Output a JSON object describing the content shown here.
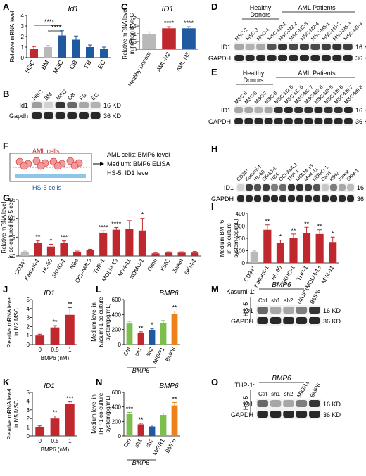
{
  "colors": {
    "red": "#c0282f",
    "blue": "#1f5aa0",
    "gray": "#b9b9b9",
    "green": "#7dbf4e",
    "orange": "#f0801a",
    "pink": "#f2b8b8",
    "cellred": "#f29a9a",
    "cellblue": "#8ec6ea"
  },
  "panels": {
    "A": {
      "letter": "A",
      "gene": "Id1",
      "ylabel": "Relative mRNA level",
      "sig": [
        "****",
        "****"
      ]
    },
    "B": {
      "letter": "B",
      "cols": [
        "HSC",
        "BM",
        "MSC",
        "OB",
        "FB",
        "EC"
      ],
      "rows": [
        "Id1",
        "Gapdh"
      ],
      "kd": [
        "16 KD",
        "36 KD"
      ]
    },
    "C": {
      "letter": "C",
      "gene": "ID1",
      "ylabel": [
        "Relative mRNA level",
        "in human BMSC"
      ],
      "sig": [
        "****",
        "****"
      ]
    },
    "D": {
      "letter": "D",
      "healthy": [
        "Healthy",
        "Donors"
      ],
      "aml": "AML Patients",
      "cols": [
        "MSC-2",
        "MSC-3",
        "MSC-4",
        "MSC-M2-1",
        "MSC-M2-2",
        "MSC-M2-3",
        "MSC-M2-4",
        "MSC-M5-1",
        "MSC-M5-2",
        "MSC-M5-3",
        "MSC-M5-4"
      ],
      "rows": [
        "ID1",
        "GAPDH"
      ],
      "kd": [
        "16 KD",
        "36 KD"
      ]
    },
    "E": {
      "letter": "E",
      "healthy": [
        "Healthy",
        "Donors"
      ],
      "aml": "AML Patients",
      "cols": [
        "MSC-5",
        "MSC-6",
        "MSC-7",
        "MSC-8",
        "MSC-M2-5",
        "MSC-M2-6",
        "MSC-M2-7",
        "MSC-M2-8",
        "MSC-M5-5",
        "MSC-M5-6",
        "MSC-M5-7",
        "MSC-M5-8"
      ],
      "rows": [
        "ID1",
        "GAPDH"
      ],
      "kd": [
        "16 KD",
        "36 KD"
      ]
    },
    "F": {
      "letter": "F",
      "aml": "AML cells",
      "hs5": "HS-5 cells",
      "lines": [
        "AML cells: BMP6 level",
        "Medium: BMP6 ELISA",
        "HS-5: ID1 level"
      ]
    },
    "G": {
      "letter": "G",
      "ylabel": [
        "Relative mRNA level",
        "in co-cultured HS-5 cells"
      ],
      "sig": [
        "**",
        "*",
        "***",
        "****",
        "****",
        "*"
      ]
    },
    "H": {
      "letter": "H",
      "cols": [
        "CD34⁺",
        "Kasumi-1",
        "HL-60",
        "SKNO-1",
        "NB4",
        "OCI-AML3",
        "THP-1",
        "MOLM-13",
        "MV4-11",
        "NOMO-1",
        "Dami",
        "K562",
        "Jurkat",
        "SKM-1"
      ],
      "rows": [
        "ID1",
        "GAPDH"
      ],
      "kd": [
        "16 KD",
        "36 KD"
      ]
    },
    "I": {
      "letter": "I",
      "ylabel": [
        "Medium BMP6",
        "in co-culture",
        "system (pg/mL)"
      ],
      "sig": [
        "**",
        "*",
        "**",
        "**",
        "**",
        "*"
      ]
    },
    "J": {
      "letter": "J",
      "gene": "ID1",
      "ylabel": [
        "Relative mRNA level",
        "in M2 MSC"
      ],
      "xlabel": "BMP6 (nM)",
      "sig": [
        "**",
        "**"
      ]
    },
    "K": {
      "letter": "K",
      "gene": "ID1",
      "ylabel": [
        "Relative mRNA level",
        "in M5 MSC"
      ],
      "xlabel": "BMP6 (nM)",
      "sig": [
        "**",
        "***"
      ]
    },
    "L": {
      "letter": "L",
      "gene": "BMP6",
      "ylabel": [
        "Medium level in",
        "Kasumi-1 co-culture",
        "system(pg/mL)"
      ],
      "groups": [
        "BMP6",
        "BMP6"
      ],
      "sig": [
        "**",
        "*",
        "**"
      ]
    },
    "M": {
      "letter": "M",
      "cell": "Kasumi-1:",
      "gene": "BMP6",
      "cols": [
        "Ctrl",
        "sh1",
        "sh2",
        "MIGR1",
        "BMP6"
      ],
      "side": "HS-5",
      "rows": [
        "ID1",
        "GAPDH"
      ],
      "kd": [
        "16 KD",
        "36 KD"
      ]
    },
    "N": {
      "letter": "N",
      "gene": "BMP6",
      "ylabel": [
        "Medium level in",
        "THP-1 co-culture",
        "system(pg/mL)"
      ],
      "groups": [
        "BMP6",
        "BMP6"
      ],
      "sig": [
        "***",
        "**",
        "**"
      ]
    },
    "O": {
      "letter": "O",
      "cell": "THP-1:",
      "gene": "BMP6",
      "cols": [
        "Ctrl",
        "sh1",
        "sh2",
        "MIGR1",
        "BMP6"
      ],
      "side": "HS-5",
      "rows": [
        "ID1",
        "GAPDH"
      ],
      "kd": [
        "16 KD",
        "36 KD"
      ]
    }
  },
  "chart_data": [
    {
      "panel": "A",
      "type": "bar",
      "categories": [
        "HSC",
        "BM",
        "MSC",
        "OB",
        "FB",
        "EC"
      ],
      "values": [
        0.85,
        1.0,
        2.1,
        1.7,
        1.0,
        0.8
      ],
      "errors": [
        0.2,
        0.15,
        0.45,
        0.35,
        0.2,
        0.2
      ],
      "ylim": [
        0,
        4
      ],
      "ticks": [
        0,
        1,
        2,
        3,
        4
      ],
      "colors": [
        "red",
        "gray",
        "blue",
        "blue",
        "blue",
        "blue"
      ]
    },
    {
      "panel": "C",
      "type": "bar",
      "categories": [
        "Healthy Donors",
        "AML-M2",
        "AML-M5"
      ],
      "values": [
        1.0,
        1.35,
        1.35
      ],
      "errors": [
        0.12,
        0.1,
        0.1
      ],
      "ylim": [
        0,
        2.0
      ],
      "ticks": [
        0,
        0.5,
        1.0,
        1.5,
        2.0
      ],
      "colors": [
        "gray",
        "red",
        "blue"
      ]
    },
    {
      "panel": "G",
      "type": "bar",
      "categories": [
        "CD34⁺",
        "Kasumi-1",
        "HL-60",
        "SKNO-1",
        "NB4",
        "OCI-AML3",
        "THP-1",
        "MOLM-13",
        "MV4-11",
        "NOMO-1",
        "Dami",
        "K562",
        "Jurkat",
        "SKM-1"
      ],
      "values": [
        1.0,
        3.5,
        2.5,
        3.5,
        1.0,
        1.5,
        6.2,
        7.0,
        7.2,
        6.8,
        0.7,
        0.9,
        0.9,
        0.9
      ],
      "errors": [
        0.3,
        0.6,
        0.6,
        0.5,
        0.3,
        0.3,
        0.5,
        0.6,
        2.2,
        3.2,
        0.2,
        0.2,
        0.2,
        0.3
      ],
      "ylim": [
        0,
        15
      ],
      "ticks": [
        0,
        5,
        10,
        15
      ],
      "colors": [
        "gray",
        "red",
        "red",
        "red",
        "red",
        "red",
        "red",
        "red",
        "red",
        "red",
        "red",
        "red",
        "red",
        "red"
      ]
    },
    {
      "panel": "I",
      "type": "bar",
      "categories": [
        "CD34⁺",
        "Kasumi-1",
        "HL-60",
        "SKNO-1",
        "THP-1",
        "MOLM-13",
        "MV4-11"
      ],
      "values": [
        90,
        270,
        160,
        205,
        240,
        235,
        170
      ],
      "errors": [
        8,
        40,
        25,
        30,
        50,
        35,
        40
      ],
      "ylim": [
        0,
        400
      ],
      "ticks": [
        0,
        100,
        200,
        300,
        400
      ],
      "colors": [
        "gray",
        "red",
        "red",
        "red",
        "red",
        "red",
        "red"
      ]
    },
    {
      "panel": "J",
      "type": "bar",
      "categories": [
        "0",
        "0.5",
        "1"
      ],
      "values": [
        1.0,
        1.9,
        3.3
      ],
      "errors": [
        0.15,
        0.2,
        0.8
      ],
      "ylim": [
        0,
        5
      ],
      "ticks": [
        0,
        1,
        2,
        3,
        4,
        5
      ],
      "colors": [
        "red",
        "red",
        "red"
      ]
    },
    {
      "panel": "K",
      "type": "bar",
      "categories": [
        "0",
        "0.5",
        "1"
      ],
      "values": [
        1.0,
        2.0,
        3.7
      ],
      "errors": [
        0.15,
        0.3,
        0.2
      ],
      "ylim": [
        0,
        5
      ],
      "ticks": [
        0,
        1,
        2,
        3,
        4,
        5
      ],
      "colors": [
        "red",
        "red",
        "red"
      ]
    },
    {
      "panel": "L",
      "type": "bar",
      "categories": [
        "Ctrl",
        "sh1",
        "sh2",
        "MIGR1",
        "BMP6"
      ],
      "values": [
        280,
        150,
        190,
        290,
        410
      ],
      "errors": [
        30,
        20,
        25,
        30,
        35
      ],
      "ylim": [
        0,
        600
      ],
      "ticks": [
        0,
        200,
        400,
        600
      ],
      "colors": [
        "green",
        "red",
        "blue",
        "green",
        "orange"
      ]
    },
    {
      "panel": "N",
      "type": "bar",
      "categories": [
        "Ctrl",
        "sh1",
        "sh2",
        "MIGR1",
        "BMP6"
      ],
      "values": [
        300,
        160,
        130,
        290,
        420
      ],
      "errors": [
        25,
        15,
        20,
        25,
        40
      ],
      "ylim": [
        0,
        600
      ],
      "ticks": [
        0,
        200,
        400,
        600
      ],
      "colors": [
        "green",
        "red",
        "blue",
        "green",
        "orange"
      ]
    }
  ]
}
